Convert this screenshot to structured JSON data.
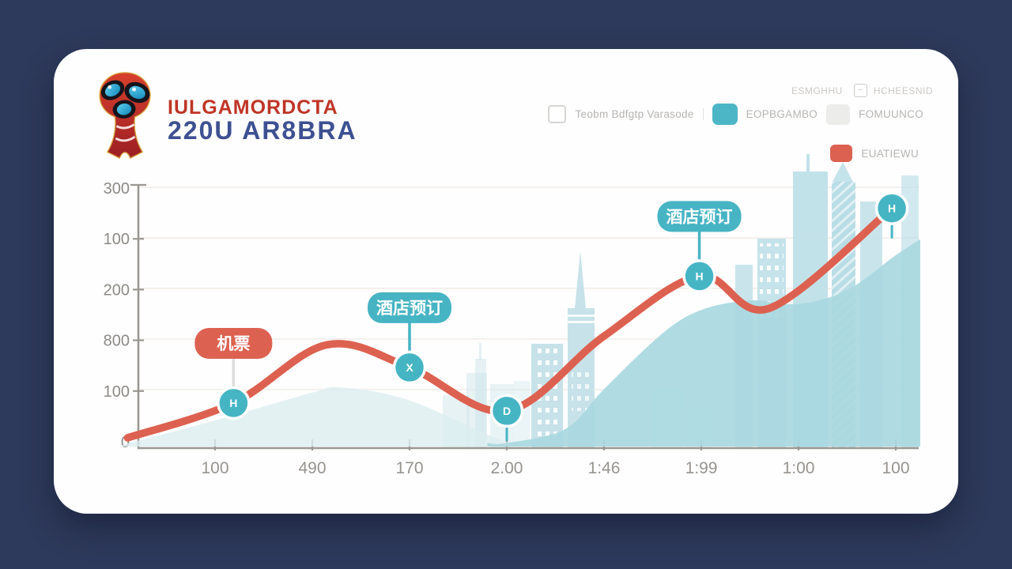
{
  "page": {
    "background": "#2e3a5b",
    "card_background": "#fefefe"
  },
  "logo": {
    "icon": "world-cup-trophy",
    "line1": "IULGAMORDCTA",
    "line2": "220U AR8BRA",
    "line1_color": "#bf3526",
    "line2_color": "#3d5092"
  },
  "legend": {
    "caption": "ESMGHHU",
    "caption_icon": "minus-box",
    "caption2": "HCHEESNID",
    "items": [
      {
        "swatch": "checkbox",
        "label": "Teobm Bdfgtp Varasode"
      },
      {
        "swatch": "#4cb6c6",
        "label": "EOPBGAMBO"
      },
      {
        "swatch": "#ececea",
        "label": "FOMUUNCO"
      },
      {
        "swatch": "#dd6150",
        "label": "EUATIEWU"
      }
    ]
  },
  "chart_data": {
    "type": "line",
    "title": "",
    "xlabel": "",
    "ylabel": "",
    "categories": [
      "100",
      "490",
      "170",
      "2.00",
      "1:46",
      "1:99",
      "1:00",
      "100"
    ],
    "y_tick_labels_top_to_bottom": [
      "300",
      "100",
      "200",
      "800",
      "100",
      "0"
    ],
    "ylim": [
      0,
      300
    ],
    "grid": true,
    "legend_position": "top-right",
    "series": [
      {
        "name": "left-wave-area",
        "type": "area",
        "color": "#dcedf0",
        "opacity": 0.8,
        "points": [
          [
            -0.95,
            2
          ],
          [
            0,
            30
          ],
          [
            1,
            62
          ],
          [
            1.3,
            68
          ],
          [
            2,
            53
          ],
          [
            3,
            5
          ],
          [
            3.4,
            2
          ]
        ]
      },
      {
        "name": "right-mound-area",
        "type": "area",
        "color": "#a9d8e0",
        "opacity": 0.92,
        "points": [
          [
            2.8,
            4
          ],
          [
            3.0,
            4
          ],
          [
            3.6,
            20
          ],
          [
            4,
            66
          ],
          [
            4.6,
            130
          ],
          [
            5,
            157
          ],
          [
            5.5,
            168
          ],
          [
            6,
            164
          ],
          [
            6.5,
            180
          ],
          [
            7,
            220
          ],
          [
            7.3,
            242
          ]
        ]
      },
      {
        "name": "price-trend-line",
        "type": "line",
        "color": "#dd6150",
        "width": 9.5,
        "points": [
          [
            -0.9,
            10
          ],
          [
            0.19,
            50
          ],
          [
            1.15,
            117
          ],
          [
            2,
            91
          ],
          [
            3,
            41
          ],
          [
            4,
            127
          ],
          [
            4.98,
            196
          ],
          [
            5.7,
            159
          ],
          [
            6.96,
            274
          ]
        ]
      }
    ],
    "markers": [
      {
        "cat": 0.19,
        "value": 50,
        "glyph": "H",
        "badge": "机票",
        "badge_color": "#dd6150",
        "stem_color": "#dcdcdc"
      },
      {
        "cat": 2.0,
        "value": 91,
        "glyph": "X",
        "badge": "酒店预订",
        "badge_color": "#47b4c4",
        "stem_color": "#47b4c4"
      },
      {
        "cat": 3.0,
        "value": 41,
        "glyph": "D",
        "stem_below": true
      },
      {
        "cat": 4.98,
        "value": 196,
        "glyph": "H",
        "badge": "酒店预订",
        "badge_color": "#47b4c4",
        "stem_color": "#47b4c4"
      },
      {
        "cat": 6.96,
        "value": 274,
        "glyph": "H",
        "stem_below": true
      }
    ],
    "marker_fill": "#45b5c4"
  }
}
